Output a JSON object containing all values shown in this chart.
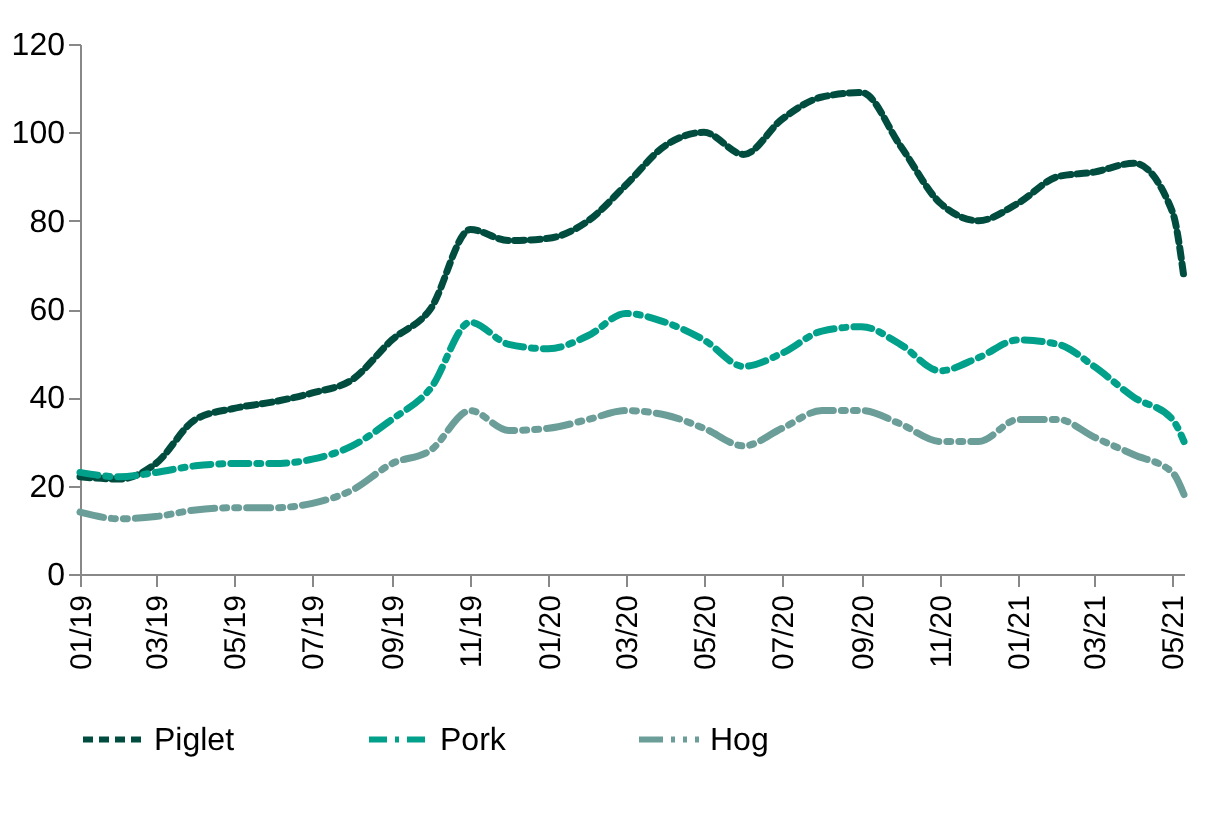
{
  "chart_data": {
    "type": "line",
    "x": [
      "2019-01",
      "2019-02",
      "2019-03",
      "2019-04",
      "2019-05",
      "2019-06",
      "2019-07",
      "2019-08",
      "2019-09",
      "2019-10",
      "2019-11",
      "2019-12",
      "2020-01",
      "2020-02",
      "2020-03",
      "2020-04",
      "2020-05",
      "2020-06",
      "2020-07",
      "2020-08",
      "2020-09",
      "2020-10",
      "2020-11",
      "2020-12",
      "2021-01",
      "2021-02",
      "2021-03",
      "2021-04",
      "2021-05",
      "2021-05-10"
    ],
    "series": [
      {
        "name": "Piglet",
        "color": "#004d40",
        "line_style": "dashed",
        "values": [
          22,
          21.5,
          25,
          35,
          37.5,
          39,
          41,
          44,
          53,
          60,
          78,
          75.5,
          76,
          80,
          88,
          97,
          100,
          95,
          103,
          108,
          109,
          97,
          84,
          80,
          84,
          90,
          91,
          93,
          82,
          67
        ]
      },
      {
        "name": "Pork",
        "color": "#00a08a",
        "line_style": "dashed",
        "values": [
          23,
          22,
          23,
          24.5,
          25,
          25,
          26,
          29,
          35,
          42,
          57,
          52,
          51,
          54,
          59,
          57,
          53,
          47,
          50,
          55,
          56,
          52,
          46,
          49,
          53,
          52,
          47,
          40,
          35,
          30
        ]
      },
      {
        "name": "Hog",
        "color": "#6b9e98",
        "line_style": "dashed",
        "values": [
          14,
          12.5,
          13,
          14.5,
          15,
          15,
          16,
          19,
          25,
          28,
          37,
          32.5,
          33,
          35,
          37,
          36,
          33,
          29,
          33,
          37,
          37,
          34,
          30,
          30,
          35,
          35,
          31,
          27,
          23,
          18
        ]
      }
    ],
    "xlim": [
      "2019-01",
      "2021-05-10"
    ],
    "xticks": [
      {
        "value": "2019-01",
        "label": "01/19"
      },
      {
        "value": "2019-03",
        "label": "03/19"
      },
      {
        "value": "2019-05",
        "label": "05/19"
      },
      {
        "value": "2019-07",
        "label": "07/19"
      },
      {
        "value": "2019-09",
        "label": "09/19"
      },
      {
        "value": "2019-11",
        "label": "11/19"
      },
      {
        "value": "2020-01",
        "label": "01/20"
      },
      {
        "value": "2020-03",
        "label": "03/20"
      },
      {
        "value": "2020-05",
        "label": "05/20"
      },
      {
        "value": "2020-07",
        "label": "07/20"
      },
      {
        "value": "2020-09",
        "label": "09/20"
      },
      {
        "value": "2020-11",
        "label": "11/20"
      },
      {
        "value": "2021-01",
        "label": "01/21"
      },
      {
        "value": "2021-03",
        "label": "03/21"
      },
      {
        "value": "2021-05",
        "label": "05/21"
      }
    ],
    "ylim": [
      0,
      120
    ],
    "yticks": [
      0,
      20,
      40,
      60,
      80,
      100,
      120
    ],
    "grid": false,
    "legend": "bottom",
    "marker": "none"
  }
}
